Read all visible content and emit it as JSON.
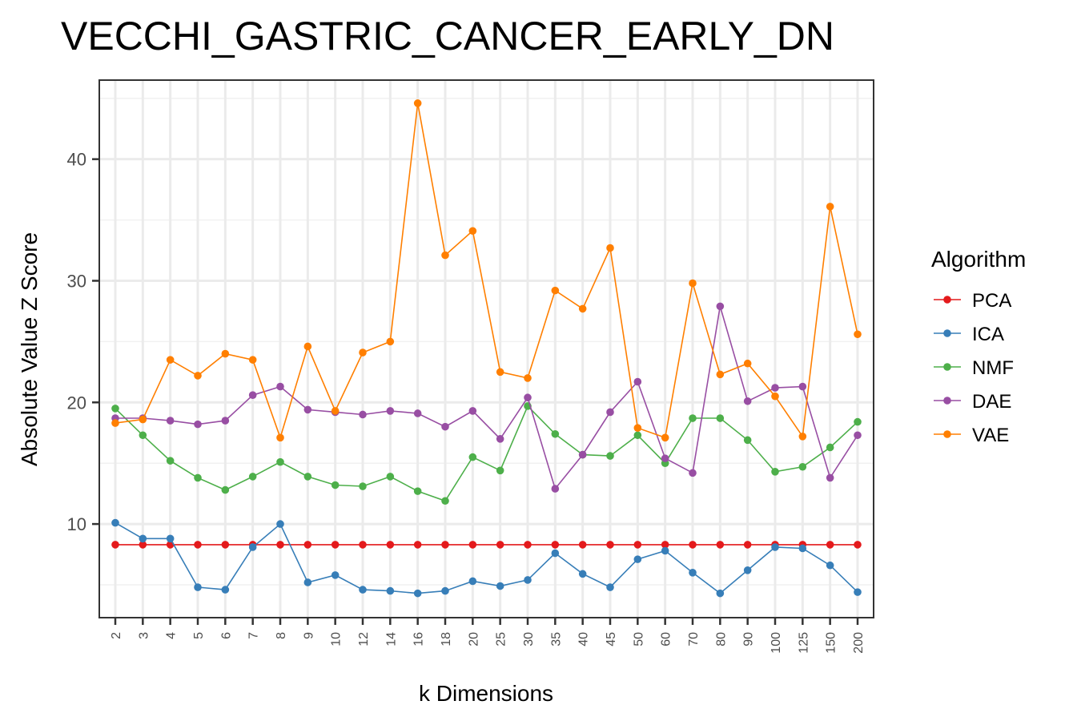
{
  "chart_data": {
    "type": "line",
    "title": "VECCHI_GASTRIC_CANCER_EARLY_DN",
    "xlabel": "k Dimensions",
    "ylabel": "Absolute Value Z Score",
    "categories": [
      "2",
      "3",
      "4",
      "5",
      "6",
      "7",
      "8",
      "9",
      "10",
      "12",
      "14",
      "16",
      "18",
      "20",
      "25",
      "30",
      "35",
      "40",
      "45",
      "50",
      "60",
      "70",
      "80",
      "90",
      "100",
      "125",
      "150",
      "200"
    ],
    "ylim": [
      2.3,
      46.5
    ],
    "yticks": [
      10,
      20,
      30,
      40
    ],
    "grid": true,
    "legend": {
      "title": "Algorithm",
      "position": "right"
    },
    "series": [
      {
        "name": "PCA",
        "color": "#E41A1C",
        "values": [
          8.3,
          8.3,
          8.3,
          8.3,
          8.3,
          8.3,
          8.3,
          8.3,
          8.3,
          8.3,
          8.3,
          8.3,
          8.3,
          8.3,
          8.3,
          8.3,
          8.3,
          8.3,
          8.3,
          8.3,
          8.3,
          8.3,
          8.3,
          8.3,
          8.3,
          8.3,
          8.3,
          8.3
        ]
      },
      {
        "name": "ICA",
        "color": "#377EB8",
        "values": [
          10.1,
          8.8,
          8.8,
          4.8,
          4.6,
          8.1,
          10.0,
          5.2,
          5.8,
          4.6,
          4.5,
          4.3,
          4.5,
          5.3,
          4.9,
          5.4,
          7.6,
          5.9,
          4.8,
          7.1,
          7.8,
          6.0,
          4.3,
          6.2,
          8.1,
          8.0,
          6.6,
          4.4
        ]
      },
      {
        "name": "NMF",
        "color": "#4DAF4A",
        "values": [
          19.5,
          17.3,
          15.2,
          13.8,
          12.8,
          13.9,
          15.1,
          13.9,
          13.2,
          13.1,
          13.9,
          12.7,
          11.9,
          15.5,
          14.4,
          19.7,
          17.4,
          15.7,
          15.6,
          17.3,
          15.0,
          18.7,
          18.7,
          16.9,
          14.3,
          14.7,
          16.3,
          18.4
        ]
      },
      {
        "name": "DAE",
        "color": "#984EA3",
        "values": [
          18.7,
          18.7,
          18.5,
          18.2,
          18.5,
          20.6,
          21.3,
          19.4,
          19.2,
          19.0,
          19.3,
          19.1,
          18.0,
          19.3,
          17.0,
          20.4,
          12.9,
          15.7,
          19.2,
          21.7,
          15.4,
          14.2,
          27.9,
          20.1,
          21.2,
          21.3,
          13.8,
          17.3
        ]
      },
      {
        "name": "VAE",
        "color": "#FF7F00",
        "values": [
          18.3,
          18.6,
          23.5,
          22.2,
          24.0,
          23.5,
          17.1,
          24.6,
          19.3,
          24.1,
          25.0,
          44.6,
          32.1,
          34.1,
          22.5,
          22.0,
          29.2,
          27.7,
          32.7,
          17.9,
          17.1,
          29.8,
          22.3,
          23.2,
          20.5,
          17.2,
          36.1,
          25.6
        ]
      }
    ]
  }
}
